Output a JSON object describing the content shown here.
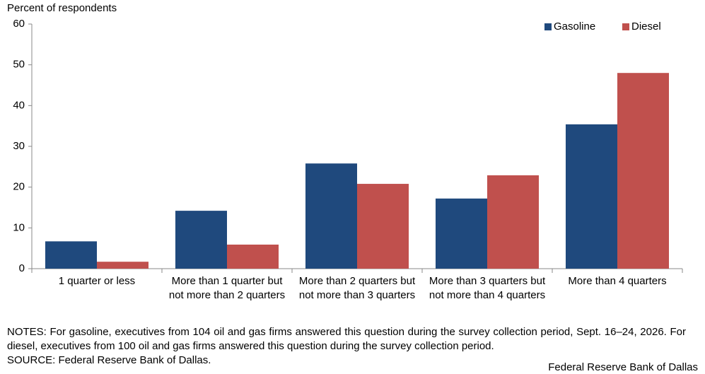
{
  "chart_data": {
    "type": "bar",
    "ylabel": "Percent of respondents",
    "categories": [
      "1 quarter or less",
      "More than 1 quarter but not more than 2 quarters",
      "More than 2 quarters but not more than 3 quarters",
      "More than 3 quarters but not more than 4 quarters",
      "More than 4 quarters"
    ],
    "series": [
      {
        "name": "Gasoline",
        "color": "#1f497d",
        "values": [
          6.7,
          14.2,
          25.8,
          17.2,
          35.4
        ]
      },
      {
        "name": "Diesel",
        "color": "#c0504d",
        "values": [
          1.7,
          5.9,
          20.8,
          22.9,
          48.0
        ]
      }
    ],
    "ylim": [
      0,
      60
    ],
    "yticks": [
      0,
      10,
      20,
      30,
      40,
      50,
      60
    ],
    "grid": false,
    "legend": "upper right",
    "notes": "NOTES: For gasoline, executives from 104 oil and gas firms answered this question during the survey collection period, Sept. 16–24, 2026. For diesel, executives from 100 oil and gas firms answered this question during the survey collection period.",
    "source": "SOURCE: Federal Reserve Bank of Dallas.",
    "credit": "Federal Reserve Bank of Dallas"
  }
}
